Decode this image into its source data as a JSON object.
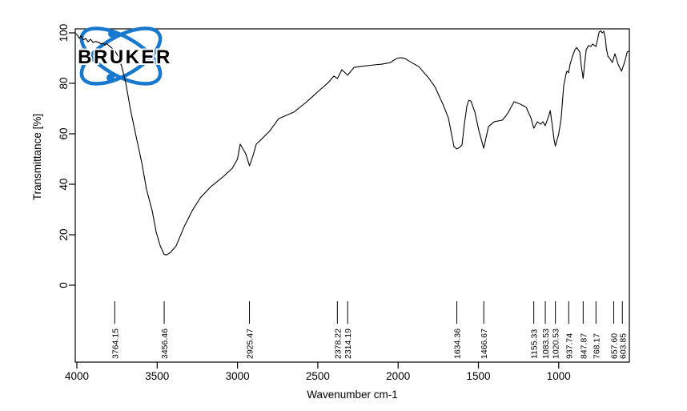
{
  "logo": {
    "text": "BRUKER",
    "blue": "#1878CE",
    "text_color": "#000000"
  },
  "colors": {
    "background": "#ffffff",
    "curve": "#000000",
    "frame": "#000000"
  },
  "chart_data": {
    "type": "line",
    "title": "",
    "xlabel": "Wavenumber cm-1",
    "ylabel": "Transmittance [%]",
    "x_axis": {
      "reversed": true,
      "left_value": 4010,
      "right_value": 560,
      "ticks": [
        4000,
        3500,
        3000,
        2500,
        2000,
        1500,
        1000
      ]
    },
    "y_axis": {
      "min": 0,
      "max": 100,
      "ticks": [
        0,
        20,
        40,
        60,
        80,
        100
      ]
    },
    "grid": false,
    "legend": false,
    "peak_labels": [
      "3764.15",
      "3456.46",
      "2925.47",
      "2378.22",
      "2314.19",
      "1634.36",
      "1466.67",
      "1155.33",
      "1083.53",
      "1020.53",
      "937.74",
      "847.87",
      "768.17",
      "657.60",
      "603.85"
    ],
    "series": [
      {
        "name": "FTIR spectrum",
        "color": "#000000",
        "points": [
          [
            4005,
            99.5
          ],
          [
            3995,
            99.0
          ],
          [
            3985,
            97.8
          ],
          [
            3975,
            98.8
          ],
          [
            3960,
            97.2
          ],
          [
            3945,
            97.8
          ],
          [
            3930,
            96.4
          ],
          [
            3915,
            97.5
          ],
          [
            3900,
            96.2
          ],
          [
            3885,
            96.6
          ],
          [
            3865,
            96.3
          ],
          [
            3850,
            95.6
          ],
          [
            3840,
            95.9
          ],
          [
            3825,
            95.2
          ],
          [
            3815,
            95.8
          ],
          [
            3800,
            94.9
          ],
          [
            3790,
            94.4
          ],
          [
            3775,
            93.6
          ],
          [
            3764,
            93.0
          ],
          [
            3750,
            91.5
          ],
          [
            3740,
            90.2
          ],
          [
            3721,
            86.7
          ],
          [
            3696,
            80.3
          ],
          [
            3666,
            69.5
          ],
          [
            3631,
            59.0
          ],
          [
            3596,
            48.6
          ],
          [
            3566,
            37.8
          ],
          [
            3531,
            29.5
          ],
          [
            3506,
            21.0
          ],
          [
            3481,
            15.6
          ],
          [
            3456,
            12.2
          ],
          [
            3442,
            12.0
          ],
          [
            3417,
            13.0
          ],
          [
            3382,
            15.6
          ],
          [
            3332,
            23.2
          ],
          [
            3282,
            29.5
          ],
          [
            3232,
            34.6
          ],
          [
            3167,
            39.0
          ],
          [
            3098,
            42.5
          ],
          [
            3033,
            46.3
          ],
          [
            3000,
            50.0
          ],
          [
            2983,
            55.9
          ],
          [
            2948,
            52.0
          ],
          [
            2925,
            47.3
          ],
          [
            2903,
            51.5
          ],
          [
            2883,
            55.9
          ],
          [
            2848,
            58.0
          ],
          [
            2798,
            61.2
          ],
          [
            2744,
            66.0
          ],
          [
            2649,
            68.6
          ],
          [
            2574,
            72.4
          ],
          [
            2520,
            75.5
          ],
          [
            2485,
            77.5
          ],
          [
            2435,
            80.3
          ],
          [
            2400,
            82.9
          ],
          [
            2378,
            81.9
          ],
          [
            2350,
            85.4
          ],
          [
            2314,
            83.2
          ],
          [
            2275,
            86.3
          ],
          [
            2235,
            86.7
          ],
          [
            2150,
            87.3
          ],
          [
            2100,
            87.6
          ],
          [
            2050,
            88.2
          ],
          [
            2010,
            89.8
          ],
          [
            1985,
            90.2
          ],
          [
            1955,
            89.8
          ],
          [
            1936,
            89.0
          ],
          [
            1871,
            86.6
          ],
          [
            1811,
            82.2
          ],
          [
            1771,
            78.7
          ],
          [
            1721,
            71.7
          ],
          [
            1687,
            66.3
          ],
          [
            1652,
            54.9
          ],
          [
            1634,
            54.0
          ],
          [
            1617,
            54.6
          ],
          [
            1602,
            55.6
          ],
          [
            1587,
            64.0
          ],
          [
            1572,
            71.0
          ],
          [
            1560,
            73.3
          ],
          [
            1547,
            73.0
          ],
          [
            1522,
            68.6
          ],
          [
            1497,
            61.2
          ],
          [
            1467,
            54.3
          ],
          [
            1437,
            62.9
          ],
          [
            1402,
            64.8
          ],
          [
            1352,
            65.4
          ],
          [
            1330,
            67.0
          ],
          [
            1313,
            68.6
          ],
          [
            1278,
            72.7
          ],
          [
            1238,
            71.7
          ],
          [
            1203,
            70.5
          ],
          [
            1173,
            66.3
          ],
          [
            1155,
            62.2
          ],
          [
            1133,
            64.8
          ],
          [
            1113,
            63.8
          ],
          [
            1098,
            64.8
          ],
          [
            1084,
            63.2
          ],
          [
            1063,
            67.0
          ],
          [
            1053,
            69.2
          ],
          [
            1040,
            63.2
          ],
          [
            1030,
            58.1
          ],
          [
            1021,
            55.1
          ],
          [
            1000,
            60.0
          ],
          [
            985,
            66.0
          ],
          [
            969,
            79.0
          ],
          [
            955,
            83.5
          ],
          [
            949,
            84.8
          ],
          [
            938,
            84.3
          ],
          [
            929,
            87.6
          ],
          [
            914,
            90.8
          ],
          [
            899,
            93.3
          ],
          [
            889,
            94.2
          ],
          [
            869,
            92.4
          ],
          [
            859,
            86.7
          ],
          [
            848,
            81.9
          ],
          [
            839,
            87.6
          ],
          [
            829,
            93.3
          ],
          [
            814,
            95.0
          ],
          [
            799,
            94.6
          ],
          [
            789,
            95.6
          ],
          [
            768,
            94.6
          ],
          [
            759,
            97.0
          ],
          [
            749,
            100.3
          ],
          [
            739,
            100.8
          ],
          [
            729,
            100.0
          ],
          [
            719,
            100.6
          ],
          [
            709,
            97.5
          ],
          [
            704,
            94.0
          ],
          [
            694,
            90.8
          ],
          [
            679,
            89.5
          ],
          [
            666,
            88.3
          ],
          [
            650,
            91.7
          ],
          [
            630,
            87.5
          ],
          [
            609,
            84.8
          ],
          [
            589,
            88.5
          ],
          [
            574,
            92.4
          ],
          [
            560,
            92.8
          ]
        ]
      }
    ]
  }
}
